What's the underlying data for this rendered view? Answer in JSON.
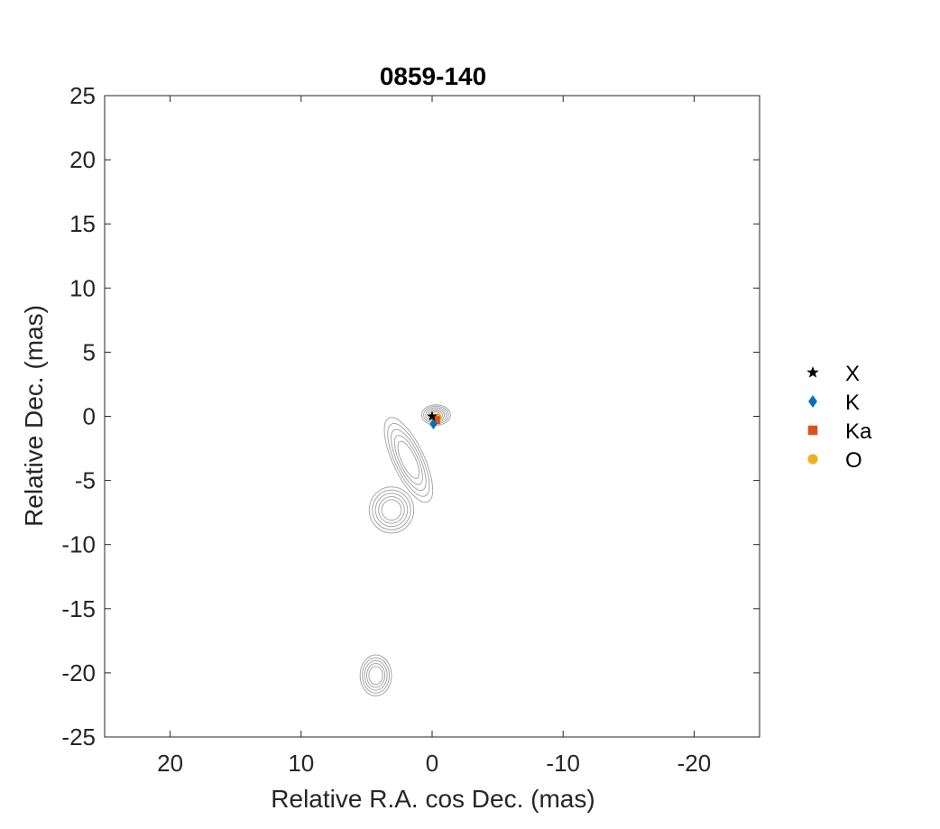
{
  "chart_data": {
    "type": "scatter",
    "title": "0859-140",
    "xlabel": "Relative R.A. cos Dec. (mas)",
    "ylabel": "Relative Dec. (mas)",
    "xlim": [
      25,
      -25
    ],
    "ylim": [
      -25,
      25
    ],
    "x_reversed": true,
    "xticks": [
      20,
      10,
      0,
      -10,
      -20
    ],
    "yticks": [
      25,
      20,
      15,
      10,
      5,
      0,
      -5,
      -10,
      -15,
      -20,
      -25
    ],
    "grid": false,
    "legend_position": "outside-right",
    "series": [
      {
        "name": "X",
        "marker": "star",
        "color": "#000000",
        "points": [
          [
            0.0,
            0.0
          ]
        ]
      },
      {
        "name": "K",
        "marker": "diamond",
        "color": "#0072BD",
        "points": [
          [
            -0.1,
            -0.6
          ]
        ]
      },
      {
        "name": "Ka",
        "marker": "square",
        "color": "#D95319",
        "points": [
          [
            -0.3,
            -0.3
          ]
        ]
      },
      {
        "name": "O",
        "marker": "circle",
        "color": "#EDB120",
        "points": [
          [
            -0.4,
            -0.1
          ]
        ]
      }
    ],
    "contours": {
      "color": "#a8a8a8",
      "components": [
        {
          "x": -0.3,
          "y": 0.1,
          "sx": 1.1,
          "sy": 0.8,
          "angle": 0,
          "levels": 6
        },
        {
          "x": 1.8,
          "y": -3.4,
          "sx": 1.2,
          "sy": 3.6,
          "angle": -25,
          "levels": 5
        },
        {
          "x": 3.1,
          "y": -7.3,
          "sx": 1.7,
          "sy": 1.8,
          "angle": 0,
          "levels": 5
        },
        {
          "x": 4.3,
          "y": -20.2,
          "sx": 1.2,
          "sy": 1.6,
          "angle": 0,
          "levels": 5
        }
      ]
    }
  }
}
